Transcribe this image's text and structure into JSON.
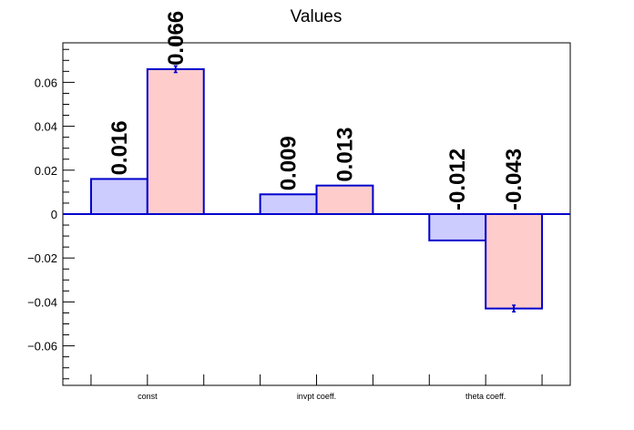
{
  "chart_data": {
    "type": "bar",
    "title": "Values",
    "categories": [
      "const",
      "invpt coeff.",
      "theta coeff."
    ],
    "series": [
      {
        "values": [
          0.016,
          0.009,
          -0.012
        ],
        "labels": [
          "0.016",
          "0.009",
          "-0.012"
        ],
        "errors": [
          0,
          0,
          0
        ],
        "color": "#ccccff"
      },
      {
        "values": [
          0.066,
          0.013,
          -0.043
        ],
        "labels": [
          "0.066",
          "0.013",
          "-0.043"
        ],
        "errors": [
          0.0015,
          0,
          0.0015
        ],
        "color": "#ffcccc"
      }
    ],
    "edge_color": "#0000cc",
    "ylim": [
      -0.078,
      0.078
    ],
    "yticks": [
      -0.06,
      -0.04,
      -0.02,
      0,
      0.02,
      0.04,
      0.06
    ],
    "ytick_labels": [
      "−0.06",
      "−0.04",
      "−0.02",
      "0",
      "0.02",
      "0.04",
      "0.06"
    ],
    "xlabel": "",
    "ylabel": "",
    "grid": false,
    "legend": "none"
  }
}
